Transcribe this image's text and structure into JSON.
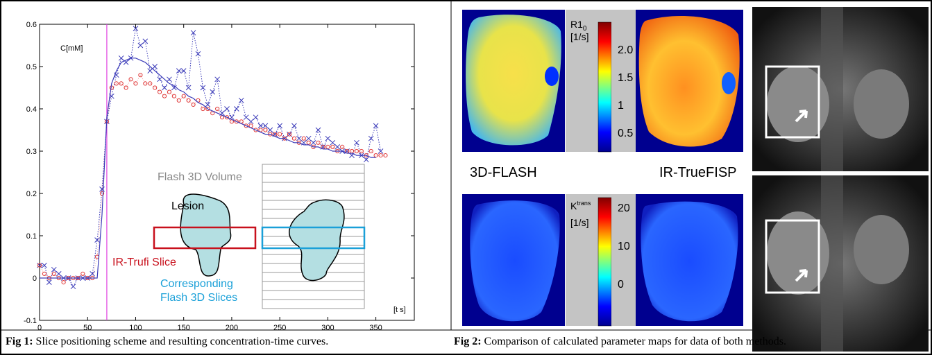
{
  "chart_data": {
    "type": "scatter",
    "ylabel": "C[mM]",
    "xlabel": "[t s]",
    "xlim": [
      0,
      390
    ],
    "ylim": [
      -0.1,
      0.6
    ],
    "xticks": [
      0,
      50,
      100,
      150,
      200,
      250,
      300,
      350
    ],
    "yticks": [
      -0.1,
      0,
      0.1,
      0.2,
      0.3,
      0.4,
      0.5,
      0.6
    ],
    "vline": 70,
    "vline_color": "#e040e0",
    "x": [
      0,
      5,
      10,
      15,
      20,
      25,
      30,
      35,
      40,
      45,
      50,
      55,
      60,
      65,
      70,
      75,
      80,
      85,
      90,
      95,
      100,
      105,
      110,
      115,
      120,
      125,
      130,
      135,
      140,
      145,
      150,
      155,
      160,
      165,
      170,
      175,
      180,
      185,
      190,
      195,
      200,
      205,
      210,
      215,
      220,
      225,
      230,
      235,
      240,
      245,
      250,
      255,
      260,
      265,
      270,
      275,
      280,
      285,
      290,
      295,
      300,
      305,
      310,
      315,
      320,
      325,
      330,
      335,
      340,
      345,
      350,
      355,
      360
    ],
    "series": [
      {
        "marker": "x",
        "color": "#3a3ab8",
        "values": [
          0.03,
          0.03,
          -0.01,
          0.02,
          0.01,
          0,
          0,
          -0.02,
          0,
          0,
          0,
          0.01,
          0.09,
          0.21,
          0.37,
          0.43,
          0.48,
          0.52,
          0.51,
          0.52,
          0.59,
          0.55,
          0.56,
          0.49,
          0.5,
          0.47,
          0.45,
          0.47,
          0.45,
          0.49,
          0.49,
          0.45,
          0.58,
          0.53,
          0.45,
          0.41,
          0.44,
          0.47,
          0.39,
          0.4,
          0.38,
          0.4,
          0.42,
          0.38,
          0.37,
          0.38,
          0.36,
          0.36,
          0.35,
          0.34,
          0.36,
          0.33,
          0.34,
          0.36,
          0.33,
          0.32,
          0.33,
          0.32,
          0.35,
          0.31,
          0.33,
          0.32,
          0.31,
          0.3,
          0.3,
          0.29,
          0.32,
          0.29,
          0.28,
          0.33,
          0.36,
          0.3,
          null
        ]
      },
      {
        "marker": "o",
        "color": "#e03a3a",
        "values": [
          0.03,
          0.01,
          0,
          0.01,
          0,
          -0.01,
          0,
          0,
          0,
          0.01,
          0,
          0,
          0.05,
          0.2,
          0.37,
          0.45,
          0.46,
          0.46,
          0.45,
          0.47,
          0.46,
          0.48,
          0.46,
          0.46,
          0.45,
          0.44,
          0.43,
          0.44,
          0.43,
          0.42,
          0.43,
          0.42,
          0.41,
          0.42,
          0.4,
          0.4,
          0.39,
          0.4,
          0.38,
          0.38,
          0.37,
          0.37,
          0.37,
          0.36,
          0.36,
          0.35,
          0.35,
          0.35,
          0.34,
          0.34,
          0.34,
          0.33,
          0.34,
          0.33,
          0.32,
          0.33,
          0.32,
          0.31,
          0.32,
          0.31,
          0.31,
          0.31,
          0.3,
          0.31,
          0.3,
          0.3,
          0.3,
          0.3,
          0.29,
          0.3,
          0.29,
          0.29,
          0.29
        ]
      },
      {
        "marker": "line",
        "color": "#3a3ab8",
        "values": [
          0,
          0,
          0,
          0,
          0,
          0,
          0,
          0,
          0,
          0,
          0,
          0,
          0,
          0.15,
          0.38,
          0.46,
          0.49,
          0.51,
          0.515,
          0.52,
          0.52,
          0.515,
          0.51,
          0.5,
          0.49,
          0.48,
          0.47,
          0.46,
          0.455,
          0.445,
          0.44,
          0.43,
          0.425,
          0.415,
          0.41,
          0.4,
          0.395,
          0.39,
          0.385,
          0.38,
          0.375,
          0.37,
          0.365,
          0.36,
          0.355,
          0.35,
          0.345,
          0.34,
          0.34,
          0.335,
          0.33,
          0.33,
          0.325,
          0.32,
          0.32,
          0.315,
          0.315,
          0.31,
          0.31,
          0.305,
          0.305,
          0.3,
          0.3,
          0.3,
          0.295,
          0.295,
          0.29,
          0.29,
          0.29,
          0.285,
          0.285,
          null,
          null
        ]
      }
    ]
  },
  "scheme": {
    "volume": "Flash 3D Volume",
    "lesion": "Lesion",
    "slice": "IR-Trufi Slice",
    "corresponding": [
      "Corresponding",
      "Flash 3D Slices"
    ]
  },
  "figure2": {
    "top_bar": {
      "label": "R1",
      "sub": "0",
      "unit": "[1/s]",
      "ticks": [
        "2.0",
        "1.5",
        "1",
        "0.5"
      ]
    },
    "bottom_bar": {
      "label": "K",
      "sup": "trans",
      "unit": "[1/s]",
      "ticks": [
        "20",
        "10",
        "0"
      ]
    },
    "labels": [
      "3D-FLASH",
      "IR-TrueFISP"
    ]
  },
  "captions": [
    {
      "tag": "Fig 1:",
      "text": " Slice positioning scheme and resulting concentration-time curves."
    },
    {
      "tag": "Fig 2:",
      "text": " Comparison of calculated parameter maps for data of both methods."
    }
  ]
}
